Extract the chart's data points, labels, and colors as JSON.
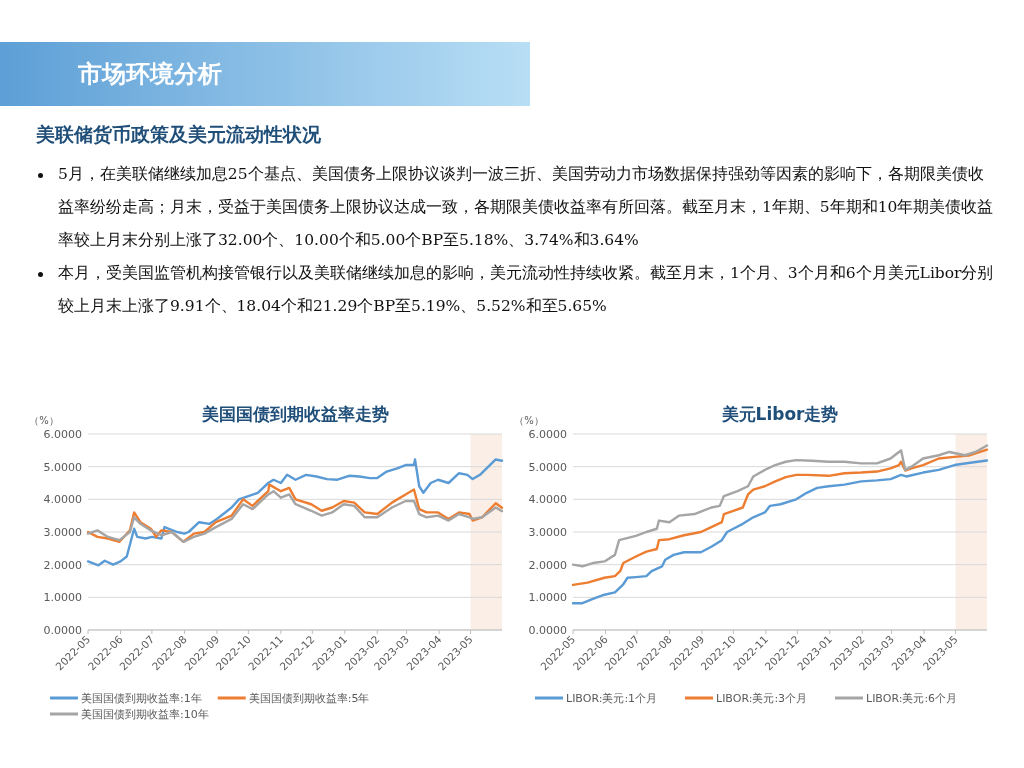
{
  "chart_data": [
    {
      "type": "other",
      "title": "市场环境分析",
      "subtitle": "美联储货币政策及美元流动性状况",
      "annotations": [
        "5月，在美联储继续加息25个基点、美国债务上限协议谈判一波三折、美国劳动力市场数据保持强劲等因素的影响下，各期限美债收益率纷纷走高；月末，受益于美国债务上限协议达成一致，各期限美债收益率有所回落。截至月末，1年期、5年期和10年期美债收益率较上月末分别上涨了32.00个、10.00个和5.00个BP至5.18%、3.74%和3.64%",
        "本月，受美国监管机构接管银行以及美联储继续加息的影响，美元流动性持续收紧。截至月末，1个月、3个月和6个月美元Libor分别较上月末上涨了9.91个、18.04个和21.29个BP至5.19%、5.52%和至5.65%"
      ]
    },
    {
      "type": "line",
      "title": "美国国债到期收益率走势",
      "ylabel": "（%）",
      "grid": "y",
      "legend": "bottom",
      "line_style": "solid",
      "marker": "none",
      "xlim": [
        "2022-05-01",
        "2023-05-31"
      ],
      "xticks": [
        "2022-05",
        "2022-06",
        "2022-07",
        "2022-08",
        "2022-09",
        "2022-10",
        "2022-11",
        "2022-12",
        "2023-01",
        "2023-02",
        "2023-03",
        "2023-04",
        "2023-05"
      ],
      "ylim": [
        0,
        6
      ],
      "yticks": [
        {
          "value": 0,
          "label": "0.0000"
        },
        {
          "value": 1,
          "label": "1.0000"
        },
        {
          "value": 2,
          "label": "2.0000"
        },
        {
          "value": 3,
          "label": "3.0000"
        },
        {
          "value": 4,
          "label": "4.0000"
        },
        {
          "value": 5,
          "label": "5.0000"
        },
        {
          "value": 6,
          "label": "6.0000"
        }
      ],
      "bands": [
        {
          "axis": "x",
          "from": "2023-05-01",
          "to": "2023-05-31",
          "color": "#fbeee6"
        }
      ],
      "series": [
        {
          "name": "美国国债到期收益率:1年",
          "color": "#5b9bd5",
          "x": [
            "2022-05-01",
            "2022-05-11",
            "2022-05-17",
            "2022-05-25",
            "2022-06-01",
            "2022-06-07",
            "2022-06-14",
            "2022-06-17",
            "2022-06-25",
            "2022-07-01",
            "2022-07-10",
            "2022-07-13",
            "2022-07-25",
            "2022-08-01",
            "2022-08-05",
            "2022-08-15",
            "2022-08-25",
            "2022-09-01",
            "2022-09-15",
            "2022-09-22",
            "2022-10-01",
            "2022-10-10",
            "2022-10-20",
            "2022-10-25",
            "2022-11-01",
            "2022-11-07",
            "2022-11-15",
            "2022-11-25",
            "2022-12-05",
            "2022-12-15",
            "2022-12-25",
            "2023-01-05",
            "2023-01-15",
            "2023-01-25",
            "2023-02-01",
            "2023-02-10",
            "2023-02-20",
            "2023-02-28",
            "2023-03-08",
            "2023-03-09",
            "2023-03-13",
            "2023-03-17",
            "2023-03-24",
            "2023-03-31",
            "2023-04-10",
            "2023-04-20",
            "2023-04-28",
            "2023-05-03",
            "2023-05-10",
            "2023-05-18",
            "2023-05-25",
            "2023-05-31"
          ],
          "values": [
            2.1,
            1.98,
            2.12,
            2.0,
            2.1,
            2.25,
            3.1,
            2.85,
            2.8,
            2.85,
            2.8,
            3.15,
            3.0,
            2.95,
            3.0,
            3.3,
            3.25,
            3.4,
            3.75,
            4.0,
            4.1,
            4.2,
            4.5,
            4.6,
            4.5,
            4.75,
            4.6,
            4.75,
            4.7,
            4.62,
            4.6,
            4.72,
            4.7,
            4.65,
            4.65,
            4.85,
            4.95,
            5.05,
            5.05,
            5.22,
            4.4,
            4.2,
            4.5,
            4.6,
            4.5,
            4.8,
            4.75,
            4.62,
            4.75,
            5.0,
            5.22,
            5.18
          ]
        },
        {
          "name": "美国国债到期收益率:5年",
          "color": "#ed7d31",
          "x": [
            "2022-05-01",
            "2022-05-10",
            "2022-05-20",
            "2022-05-31",
            "2022-06-10",
            "2022-06-14",
            "2022-06-20",
            "2022-06-30",
            "2022-07-05",
            "2022-07-10",
            "2022-07-20",
            "2022-07-31",
            "2022-08-10",
            "2022-08-20",
            "2022-08-31",
            "2022-09-15",
            "2022-09-26",
            "2022-10-05",
            "2022-10-20",
            "2022-10-21",
            "2022-11-01",
            "2022-11-09",
            "2022-11-15",
            "2022-11-30",
            "2022-12-10",
            "2022-12-20",
            "2022-12-31",
            "2023-01-10",
            "2023-01-20",
            "2023-02-01",
            "2023-02-15",
            "2023-02-28",
            "2023-03-08",
            "2023-03-13",
            "2023-03-20",
            "2023-03-31",
            "2023-04-10",
            "2023-04-20",
            "2023-04-30",
            "2023-05-03",
            "2023-05-12",
            "2023-05-25",
            "2023-05-31"
          ],
          "values": [
            3.0,
            2.85,
            2.8,
            2.7,
            3.05,
            3.6,
            3.3,
            3.1,
            2.85,
            3.05,
            3.0,
            2.7,
            2.95,
            3.0,
            3.3,
            3.5,
            4.0,
            3.8,
            4.25,
            4.45,
            4.25,
            4.35,
            4.0,
            3.85,
            3.65,
            3.75,
            3.95,
            3.9,
            3.6,
            3.55,
            3.9,
            4.15,
            4.3,
            3.7,
            3.6,
            3.6,
            3.4,
            3.6,
            3.55,
            3.35,
            3.45,
            3.88,
            3.74
          ]
        },
        {
          "name": "美国国债到期收益率:10年",
          "color": "#a5a5a5",
          "x": [
            "2022-05-01",
            "2022-05-10",
            "2022-05-20",
            "2022-05-31",
            "2022-06-10",
            "2022-06-14",
            "2022-06-20",
            "2022-06-30",
            "2022-07-10",
            "2022-07-20",
            "2022-07-31",
            "2022-08-10",
            "2022-08-20",
            "2022-08-31",
            "2022-09-15",
            "2022-09-26",
            "2022-10-05",
            "2022-10-20",
            "2022-10-25",
            "2022-11-01",
            "2022-11-09",
            "2022-11-15",
            "2022-11-30",
            "2022-12-10",
            "2022-12-20",
            "2022-12-31",
            "2023-01-10",
            "2023-01-20",
            "2023-02-01",
            "2023-02-15",
            "2023-02-28",
            "2023-03-08",
            "2023-03-13",
            "2023-03-20",
            "2023-03-31",
            "2023-04-10",
            "2023-04-20",
            "2023-04-30",
            "2023-05-03",
            "2023-05-12",
            "2023-05-25",
            "2023-05-31"
          ],
          "values": [
            2.95,
            3.05,
            2.85,
            2.75,
            3.0,
            3.45,
            3.25,
            3.05,
            2.9,
            3.0,
            2.7,
            2.85,
            2.95,
            3.15,
            3.4,
            3.85,
            3.7,
            4.15,
            4.25,
            4.05,
            4.15,
            3.85,
            3.65,
            3.5,
            3.6,
            3.85,
            3.8,
            3.45,
            3.45,
            3.75,
            3.95,
            3.95,
            3.55,
            3.45,
            3.5,
            3.35,
            3.55,
            3.45,
            3.4,
            3.45,
            3.75,
            3.64
          ]
        }
      ]
    },
    {
      "type": "line",
      "title": "美元Libor走势",
      "ylabel": "（%）",
      "grid": "y",
      "legend": "bottom",
      "line_style": "solid",
      "marker": "none",
      "xlim": [
        "2022-05-01",
        "2023-05-31"
      ],
      "xticks": [
        "2022-05",
        "2022-06",
        "2022-07",
        "2022-08",
        "2022-09",
        "2022-10",
        "2022-11",
        "2022-12",
        "2023-01",
        "2023-02",
        "2023-03",
        "2023-04",
        "2023-05"
      ],
      "ylim": [
        0,
        6
      ],
      "yticks": [
        {
          "value": 0,
          "label": "0.0000"
        },
        {
          "value": 1,
          "label": "1.0000"
        },
        {
          "value": 2,
          "label": "2.0000"
        },
        {
          "value": 3,
          "label": "3.0000"
        },
        {
          "value": 4,
          "label": "4.0000"
        },
        {
          "value": 5,
          "label": "5.0000"
        },
        {
          "value": 6,
          "label": "6.0000"
        }
      ],
      "bands": [
        {
          "axis": "x",
          "from": "2023-05-01",
          "to": "2023-05-31",
          "color": "#fbeee6"
        }
      ],
      "series": [
        {
          "name": "LIBOR:美元:1个月",
          "color": "#5b9bd5",
          "x": [
            "2022-05-01",
            "2022-05-10",
            "2022-05-20",
            "2022-05-31",
            "2022-06-10",
            "2022-06-18",
            "2022-06-22",
            "2022-06-30",
            "2022-07-10",
            "2022-07-15",
            "2022-07-25",
            "2022-07-28",
            "2022-08-05",
            "2022-08-15",
            "2022-08-31",
            "2022-09-10",
            "2022-09-20",
            "2022-09-25",
            "2022-10-01",
            "2022-10-10",
            "2022-10-20",
            "2022-10-31",
            "2022-11-05",
            "2022-11-15",
            "2022-11-30",
            "2022-12-10",
            "2022-12-20",
            "2022-12-31",
            "2023-01-15",
            "2023-01-31",
            "2023-02-15",
            "2023-02-28",
            "2023-03-10",
            "2023-03-15",
            "2023-03-31",
            "2023-04-15",
            "2023-04-30",
            "2023-05-15",
            "2023-05-31"
          ],
          "values": [
            0.82,
            0.82,
            0.95,
            1.08,
            1.15,
            1.4,
            1.6,
            1.62,
            1.65,
            1.8,
            1.95,
            2.15,
            2.3,
            2.38,
            2.38,
            2.55,
            2.75,
            3.0,
            3.1,
            3.25,
            3.45,
            3.6,
            3.8,
            3.85,
            4.0,
            4.2,
            4.35,
            4.4,
            4.45,
            4.55,
            4.58,
            4.62,
            4.75,
            4.7,
            4.82,
            4.9,
            5.05,
            5.12,
            5.19
          ]
        },
        {
          "name": "LIBOR:美元:3个月",
          "color": "#ed7d31",
          "x": [
            "2022-05-01",
            "2022-05-15",
            "2022-05-31",
            "2022-06-10",
            "2022-06-15",
            "2022-06-18",
            "2022-06-30",
            "2022-07-10",
            "2022-07-20",
            "2022-07-22",
            "2022-08-01",
            "2022-08-15",
            "2022-08-31",
            "2022-09-10",
            "2022-09-20",
            "2022-09-22",
            "2022-10-01",
            "2022-10-10",
            "2022-10-15",
            "2022-10-20",
            "2022-10-31",
            "2022-11-10",
            "2022-11-20",
            "2022-11-30",
            "2022-12-10",
            "2022-12-31",
            "2023-01-15",
            "2023-01-31",
            "2023-02-15",
            "2023-02-28",
            "2023-03-08",
            "2023-03-10",
            "2023-03-14",
            "2023-03-20",
            "2023-03-31",
            "2023-04-15",
            "2023-04-30",
            "2023-05-15",
            "2023-05-31"
          ],
          "values": [
            1.38,
            1.45,
            1.6,
            1.65,
            1.8,
            2.05,
            2.25,
            2.4,
            2.48,
            2.75,
            2.78,
            2.9,
            3.0,
            3.15,
            3.3,
            3.55,
            3.65,
            3.75,
            4.15,
            4.3,
            4.4,
            4.55,
            4.68,
            4.75,
            4.75,
            4.72,
            4.8,
            4.82,
            4.85,
            4.95,
            5.05,
            5.15,
            4.88,
            4.95,
            5.05,
            5.25,
            5.3,
            5.35,
            5.52
          ]
        },
        {
          "name": "LIBOR:美元:6个月",
          "color": "#a5a5a5",
          "x": [
            "2022-05-01",
            "2022-05-10",
            "2022-05-20",
            "2022-05-31",
            "2022-06-10",
            "2022-06-14",
            "2022-06-30",
            "2022-07-10",
            "2022-07-20",
            "2022-07-22",
            "2022-08-01",
            "2022-08-10",
            "2022-08-25",
            "2022-09-10",
            "2022-09-18",
            "2022-09-22",
            "2022-10-05",
            "2022-10-15",
            "2022-10-20",
            "2022-10-31",
            "2022-11-10",
            "2022-11-20",
            "2022-11-30",
            "2022-12-15",
            "2022-12-31",
            "2023-01-15",
            "2023-01-31",
            "2023-02-15",
            "2023-02-28",
            "2023-03-08",
            "2023-03-10",
            "2023-03-14",
            "2023-03-20",
            "2023-03-31",
            "2023-04-15",
            "2023-04-25",
            "2023-05-10",
            "2023-05-20",
            "2023-05-31"
          ],
          "values": [
            2.0,
            1.95,
            2.05,
            2.1,
            2.3,
            2.75,
            2.88,
            3.0,
            3.1,
            3.35,
            3.3,
            3.5,
            3.55,
            3.75,
            3.8,
            4.1,
            4.25,
            4.4,
            4.7,
            4.9,
            5.05,
            5.15,
            5.2,
            5.18,
            5.15,
            5.15,
            5.1,
            5.1,
            5.25,
            5.45,
            5.5,
            4.9,
            5.0,
            5.25,
            5.35,
            5.45,
            5.35,
            5.45,
            5.65
          ]
        }
      ]
    }
  ]
}
